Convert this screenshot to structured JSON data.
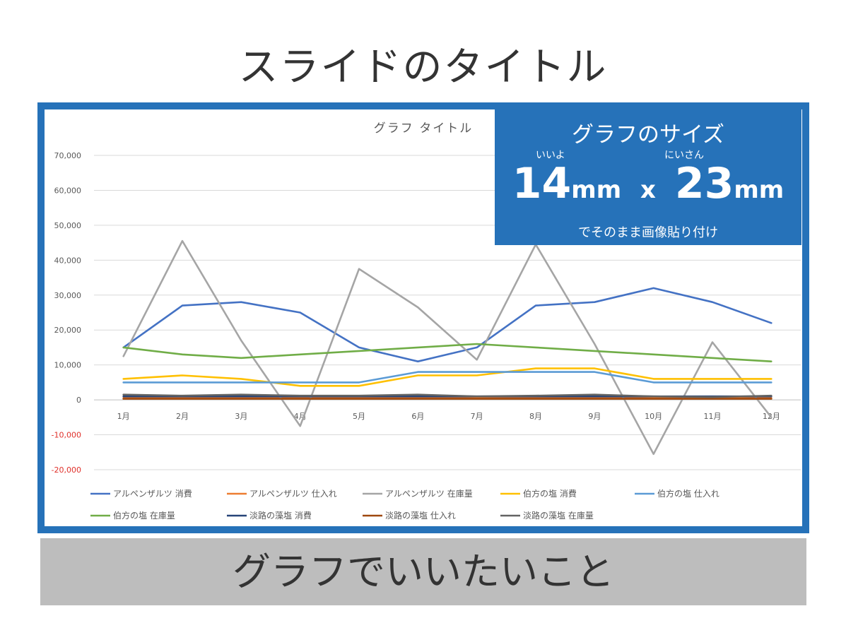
{
  "slide": {
    "title": "スライドのタイトル",
    "message": "グラフでいいたいこと"
  },
  "size_box": {
    "title": "グラフのサイズ",
    "ruby_left": "いいよ",
    "ruby_right": "にいさん",
    "width_value": "14",
    "height_value": "23",
    "unit": "mm",
    "separator": "x",
    "note": "でそのまま画像貼り付け"
  },
  "colors": {
    "frame": "#2672b9",
    "message_bar": "#bdbdbd"
  },
  "chart_data": {
    "type": "line",
    "title": "グラフ タイトル",
    "xlabel": "",
    "ylabel": "",
    "categories": [
      "1月",
      "2月",
      "3月",
      "4月",
      "5月",
      "6月",
      "7月",
      "8月",
      "9月",
      "10月",
      "11月",
      "12月"
    ],
    "ylim": [
      -20000,
      70000
    ],
    "yticks": [
      70000,
      60000,
      50000,
      40000,
      30000,
      20000,
      10000,
      0,
      -10000,
      -20000
    ],
    "ytick_labels": [
      "70,000",
      "60,000",
      "50,000",
      "40,000",
      "30,000",
      "20,000",
      "10,000",
      "0",
      "-10,000",
      "-20,000"
    ],
    "negative_tick_color": "#e0312b",
    "grid": true,
    "legend_position": "bottom",
    "series": [
      {
        "name": "アルペンザルツ 消費",
        "color": "#4472c4",
        "values": [
          15000,
          27000,
          28000,
          25000,
          15000,
          11000,
          15000,
          27000,
          28000,
          32000,
          28000,
          22000
        ]
      },
      {
        "name": "アルペンザルツ 仕入れ",
        "color": "#ed7d31",
        "values": [
          500,
          500,
          500,
          500,
          500,
          500,
          500,
          500,
          500,
          500,
          500,
          500
        ]
      },
      {
        "name": "アルペンザルツ 在庫量",
        "color": "#a5a5a5",
        "values": [
          12500,
          45500,
          17000,
          -7500,
          37500,
          26500,
          11500,
          44500,
          16000,
          -15500,
          16500,
          -5000
        ]
      },
      {
        "name": "伯方の塩 消費",
        "color": "#ffc000",
        "values": [
          6000,
          7000,
          6000,
          4000,
          4000,
          7000,
          7000,
          9000,
          9000,
          6000,
          6000,
          6000
        ]
      },
      {
        "name": "伯方の塩 仕入れ",
        "color": "#5b9bd5",
        "values": [
          5000,
          5000,
          5000,
          5000,
          5000,
          8000,
          8000,
          8000,
          8000,
          5000,
          5000,
          5000
        ]
      },
      {
        "name": "伯方の塩 在庫量",
        "color": "#70ad47",
        "values": [
          15000,
          13000,
          12000,
          13000,
          14000,
          15000,
          16000,
          15000,
          14000,
          13000,
          12000,
          11000
        ]
      },
      {
        "name": "淡路の藻塩 消費",
        "color": "#264478",
        "values": [
          1000,
          1000,
          1000,
          1000,
          1000,
          1000,
          1000,
          1000,
          1000,
          1000,
          1000,
          1000
        ]
      },
      {
        "name": "淡路の藻塩 仕入れ",
        "color": "#9e480e",
        "values": [
          300,
          300,
          300,
          300,
          300,
          300,
          300,
          300,
          300,
          300,
          300,
          300
        ]
      },
      {
        "name": "淡路の藻塩 在庫量",
        "color": "#636363",
        "values": [
          1500,
          1200,
          1500,
          1200,
          1200,
          1500,
          1000,
          1200,
          1500,
          1000,
          800,
          1200
        ]
      }
    ]
  }
}
